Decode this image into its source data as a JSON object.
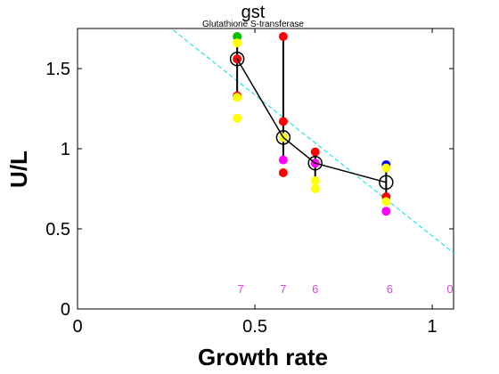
{
  "chart_data": {
    "type": "scatter",
    "title": "gst",
    "subtitle": "Glutathione S-transferase",
    "xlabel": "Growth rate",
    "ylabel": "U/L",
    "xlim": [
      0,
      1.06
    ],
    "ylim": [
      0,
      1.75
    ],
    "xticks": [
      0,
      0.5,
      1
    ],
    "xtick_labels": [
      "0",
      "0.5",
      "1"
    ],
    "yticks": [
      0,
      0.5,
      1,
      1.5
    ],
    "ytick_labels": [
      "0",
      "0.5",
      "1",
      "1.5"
    ],
    "grid": false,
    "mean_series": {
      "x": [
        0.45,
        0.58,
        0.67,
        0.87
      ],
      "y": [
        1.56,
        1.07,
        0.91,
        0.79
      ],
      "error_low": [
        1.33,
        0.93,
        0.8,
        0.68
      ],
      "error_high": [
        1.7,
        1.7,
        0.98,
        0.9
      ],
      "color": "#000000"
    },
    "replicate_points": [
      {
        "x": 0.45,
        "y": 1.7,
        "color": "#00c000"
      },
      {
        "x": 0.45,
        "y": 1.66,
        "color": "#ffff00"
      },
      {
        "x": 0.45,
        "y": 1.56,
        "color": "#ff0000"
      },
      {
        "x": 0.45,
        "y": 1.33,
        "color": "#ff0000"
      },
      {
        "x": 0.45,
        "y": 1.32,
        "color": "#ffff00"
      },
      {
        "x": 0.45,
        "y": 1.19,
        "color": "#ffff00"
      },
      {
        "x": 0.58,
        "y": 1.7,
        "color": "#ff0000"
      },
      {
        "x": 0.58,
        "y": 1.17,
        "color": "#ff0000"
      },
      {
        "x": 0.58,
        "y": 1.07,
        "color": "#ffff00"
      },
      {
        "x": 0.58,
        "y": 0.93,
        "color": "#ff00ff"
      },
      {
        "x": 0.58,
        "y": 0.85,
        "color": "#ff0000"
      },
      {
        "x": 0.67,
        "y": 0.98,
        "color": "#ff0000"
      },
      {
        "x": 0.67,
        "y": 0.91,
        "color": "#ff00ff"
      },
      {
        "x": 0.67,
        "y": 0.8,
        "color": "#ffff00"
      },
      {
        "x": 0.67,
        "y": 0.75,
        "color": "#ffff00"
      },
      {
        "x": 0.87,
        "y": 0.9,
        "color": "#0000ff"
      },
      {
        "x": 0.87,
        "y": 0.88,
        "color": "#ffff00"
      },
      {
        "x": 0.87,
        "y": 0.7,
        "color": "#ff0000"
      },
      {
        "x": 0.87,
        "y": 0.67,
        "color": "#ffff00"
      },
      {
        "x": 0.87,
        "y": 0.61,
        "color": "#ff00ff"
      }
    ],
    "fit_line": {
      "x": [
        0.27,
        1.06
      ],
      "y": [
        1.74,
        0.35
      ],
      "color": "#00e0e0",
      "style": "dashed"
    },
    "count_labels": [
      {
        "x": 0.46,
        "y": 0.1,
        "text": "7"
      },
      {
        "x": 0.58,
        "y": 0.1,
        "text": "7"
      },
      {
        "x": 0.67,
        "y": 0.1,
        "text": "6"
      },
      {
        "x": 0.88,
        "y": 0.1,
        "text": "6"
      },
      {
        "x": 1.05,
        "y": 0.1,
        "text": "0"
      }
    ],
    "count_label_color": "#e040e0"
  }
}
